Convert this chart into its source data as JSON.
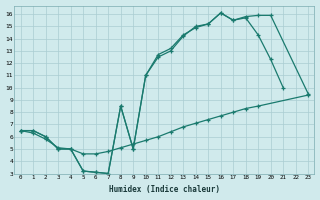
{
  "xlabel": "Humidex (Indice chaleur)",
  "background_color": "#d0eaec",
  "grid_color": "#aacdd2",
  "line_color": "#1a7a6e",
  "xlim": [
    -0.5,
    23.5
  ],
  "ylim": [
    3,
    16.7
  ],
  "xticks": [
    0,
    1,
    2,
    3,
    4,
    5,
    6,
    7,
    8,
    9,
    10,
    11,
    12,
    13,
    14,
    15,
    16,
    17,
    18,
    19,
    20,
    21,
    22,
    23
  ],
  "yticks": [
    3,
    4,
    5,
    6,
    7,
    8,
    9,
    10,
    11,
    12,
    13,
    14,
    15,
    16
  ],
  "line1_x": [
    0,
    1,
    2,
    3,
    4,
    5,
    6,
    7,
    8,
    9,
    10,
    11,
    12,
    13,
    14,
    15,
    16,
    17,
    18,
    19,
    20,
    21
  ],
  "line1_y": [
    6.5,
    6.5,
    6.0,
    5.0,
    5.0,
    3.2,
    3.1,
    3.0,
    8.5,
    5.0,
    11.0,
    12.7,
    13.2,
    14.3,
    14.9,
    15.2,
    16.1,
    15.5,
    15.7,
    14.3,
    12.3,
    10.0
  ],
  "line2_x": [
    0,
    1,
    2,
    3,
    4,
    5,
    6,
    7,
    8,
    9,
    10,
    11,
    12,
    13,
    14,
    15,
    16,
    17,
    18,
    19,
    20,
    23
  ],
  "line2_y": [
    6.5,
    6.5,
    6.0,
    5.0,
    5.0,
    3.2,
    3.1,
    3.0,
    8.5,
    5.0,
    11.0,
    12.5,
    13.0,
    14.2,
    15.0,
    15.2,
    16.1,
    15.5,
    15.8,
    15.9,
    15.9,
    9.5
  ],
  "line3_x": [
    0,
    1,
    2,
    3,
    4,
    5,
    6,
    7,
    8,
    9,
    10,
    11,
    12,
    13,
    14,
    15,
    16,
    17,
    18,
    19,
    23
  ],
  "line3_y": [
    6.5,
    6.3,
    5.8,
    5.1,
    5.0,
    4.6,
    4.6,
    4.8,
    5.1,
    5.4,
    5.7,
    6.0,
    6.4,
    6.8,
    7.1,
    7.4,
    7.7,
    8.0,
    8.3,
    8.5,
    9.4
  ]
}
